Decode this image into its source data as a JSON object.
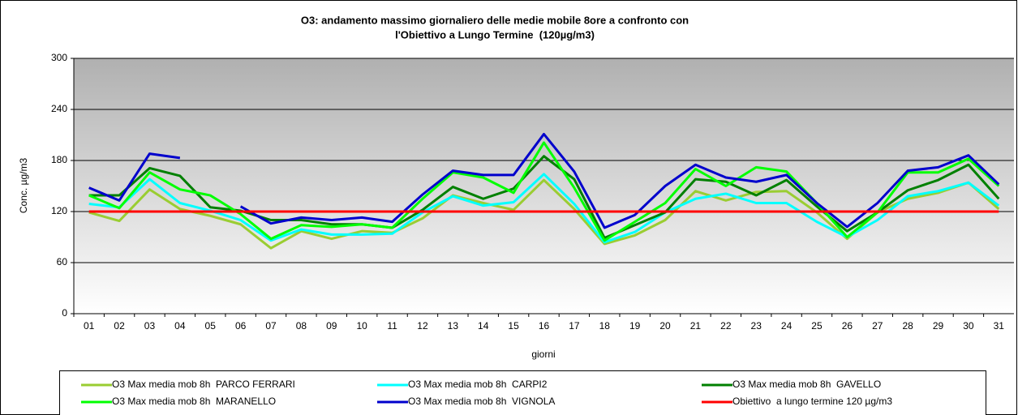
{
  "chart_data": {
    "type": "line",
    "title": [
      "O3: andamento massimo giornaliero delle medie mobile 8ore a confronto con",
      "l'Obiettivo a Lungo Termine  (120µg/m3)"
    ],
    "y_label": "Conc. µg/m3",
    "x_label": "giorni",
    "categories": [
      "01",
      "02",
      "03",
      "04",
      "05",
      "06",
      "07",
      "08",
      "09",
      "10",
      "11",
      "12",
      "13",
      "14",
      "15",
      "16",
      "17",
      "18",
      "19",
      "20",
      "21",
      "22",
      "23",
      "24",
      "25",
      "26",
      "27",
      "28",
      "29",
      "30",
      "31"
    ],
    "ylim": [
      0,
      300
    ],
    "yticks": [
      0,
      60,
      120,
      180,
      240,
      300
    ],
    "grid": true,
    "legend": "bottom",
    "series": [
      {
        "name": "O3 Max media mob 8h  PARCO FERRARI",
        "color": "#9acd32",
        "values": [
          119,
          109,
          146,
          123,
          115,
          105,
          77,
          97,
          88,
          97,
          95,
          112,
          139,
          130,
          122,
          157,
          123,
          82,
          92,
          110,
          144,
          133,
          143,
          144,
          119,
          88,
          119,
          135,
          142,
          154,
          123
        ]
      },
      {
        "name": "O3 Max media mob 8h  CARPI2",
        "color": "#00ffff",
        "values": [
          129,
          125,
          158,
          130,
          121,
          110,
          86,
          99,
          93,
          93,
          94,
          119,
          138,
          127,
          131,
          164,
          129,
          84,
          96,
          119,
          135,
          141,
          130,
          130,
          108,
          90,
          110,
          138,
          144,
          154,
          127
        ]
      },
      {
        "name": "O3 Max media mob 8h  GAVELLO",
        "color": "#008000",
        "values": [
          139,
          139,
          171,
          162,
          125,
          121,
          110,
          110,
          105,
          105,
          101,
          122,
          149,
          135,
          147,
          185,
          158,
          89,
          104,
          119,
          158,
          155,
          139,
          157,
          126,
          97,
          119,
          145,
          157,
          175,
          135
        ]
      },
      {
        "name": "O3 Max media mob 8h  MARANELLO",
        "color": "#00ff00",
        "values": [
          139,
          124,
          166,
          146,
          139,
          117,
          88,
          104,
          102,
          105,
          101,
          135,
          166,
          160,
          142,
          201,
          148,
          86,
          108,
          130,
          170,
          150,
          172,
          167,
          130,
          90,
          119,
          166,
          166,
          182,
          150
        ]
      },
      {
        "name": "O3 Max media mob 8h  VIGNOLA",
        "color": "#0000cc",
        "values": [
          148,
          133,
          188,
          183,
          null,
          126,
          106,
          113,
          110,
          113,
          108,
          140,
          168,
          163,
          163,
          211,
          167,
          101,
          116,
          150,
          175,
          160,
          155,
          163,
          130,
          102,
          130,
          168,
          172,
          186,
          152
        ]
      },
      {
        "name": "Obiettivo  a lungo termine 120 µg/m3",
        "color": "#ff0000",
        "values": [
          120,
          120,
          120,
          120,
          120,
          120,
          120,
          120,
          120,
          120,
          120,
          120,
          120,
          120,
          120,
          120,
          120,
          120,
          120,
          120,
          120,
          120,
          120,
          120,
          120,
          120,
          120,
          120,
          120,
          120,
          120
        ]
      }
    ]
  }
}
